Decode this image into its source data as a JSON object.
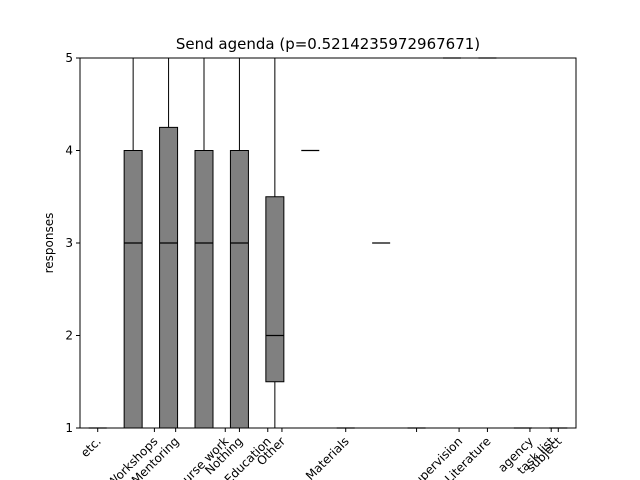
{
  "chart_data": {
    "type": "box",
    "title": "Send agenda (p=0.5214235972967671)",
    "xlabel": "",
    "ylabel": "responses",
    "ylim": [
      1,
      5
    ],
    "yticks": [
      1,
      2,
      3,
      4,
      5
    ],
    "grid": false,
    "box_color": "#808080",
    "categories": [
      "etc.",
      "Workshops",
      "Mentoring",
      "Course work",
      "Nothing",
      "Education",
      "Other",
      "Materials",
      "",
      "Supervision",
      "Literature",
      "agency",
      "task list",
      "subject"
    ],
    "label_positions": [
      1,
      2.6,
      3.2,
      4.6,
      5,
      5.8,
      6.2,
      8,
      10,
      11.2,
      12,
      13.2,
      13.8,
      14
    ],
    "boxes": [
      {
        "pos": 1,
        "q1": 1,
        "median": 1,
        "q3": 1,
        "whisker_low": 1,
        "whisker_high": 1
      },
      {
        "pos": 2,
        "q1": 1,
        "median": 3,
        "q3": 4,
        "whisker_low": 1,
        "whisker_high": 5
      },
      {
        "pos": 3,
        "q1": 1,
        "median": 3,
        "q3": 4.25,
        "whisker_low": 1,
        "whisker_high": 5
      },
      {
        "pos": 4,
        "q1": 1,
        "median": 3,
        "q3": 4,
        "whisker_low": 1,
        "whisker_high": 5
      },
      {
        "pos": 5,
        "q1": 1,
        "median": 3,
        "q3": 4,
        "whisker_low": 1,
        "whisker_high": 5
      },
      {
        "pos": 6,
        "q1": 1.5,
        "median": 2,
        "q3": 3.5,
        "whisker_low": 1,
        "whisker_high": 5
      },
      {
        "pos": 7,
        "q1": 4,
        "median": 4,
        "q3": 4,
        "whisker_low": 4,
        "whisker_high": 4
      },
      {
        "pos": 8,
        "q1": 1,
        "median": 1,
        "q3": 1,
        "whisker_low": 1,
        "whisker_high": 1
      },
      {
        "pos": 9,
        "q1": 3,
        "median": 3,
        "q3": 3,
        "whisker_low": 3,
        "whisker_high": 3
      },
      {
        "pos": 10,
        "q1": 1,
        "median": 1,
        "q3": 1,
        "whisker_low": 1,
        "whisker_high": 1
      },
      {
        "pos": 11,
        "q1": 5,
        "median": 5,
        "q3": 5,
        "whisker_low": 5,
        "whisker_high": 5
      },
      {
        "pos": 12,
        "q1": 5,
        "median": 5,
        "q3": 5,
        "whisker_low": 5,
        "whisker_high": 5
      },
      {
        "pos": 13,
        "q1": 1,
        "median": 1,
        "q3": 1,
        "whisker_low": 1,
        "whisker_high": 1
      },
      {
        "pos": 14,
        "q1": 1,
        "median": 1,
        "q3": 1,
        "whisker_low": 1,
        "whisker_high": 1
      }
    ]
  }
}
